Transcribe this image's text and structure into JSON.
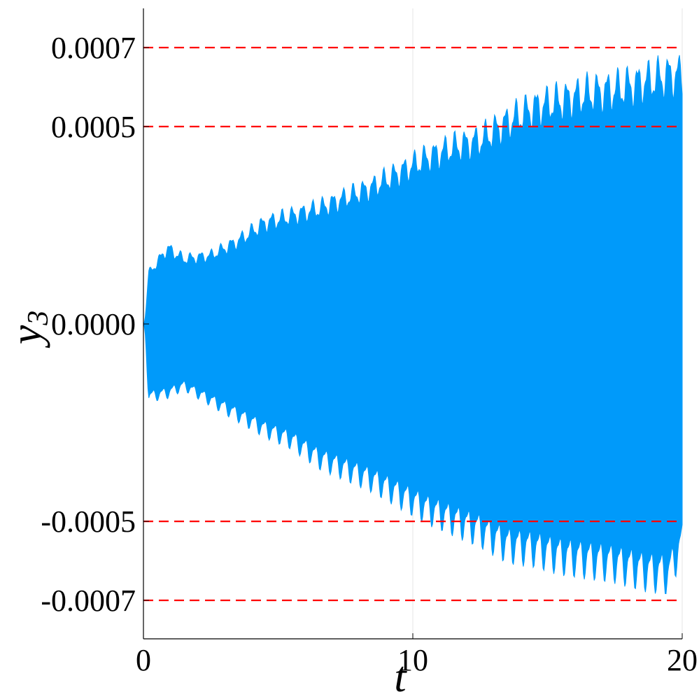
{
  "chart_data": {
    "type": "area",
    "xlabel": "t",
    "ylabel": "y",
    "ylabel_subscript": "3",
    "xlim": [
      0,
      20
    ],
    "ylim": [
      -0.0008,
      0.0008
    ],
    "x_ticks": [
      0,
      10,
      20
    ],
    "x_tick_labels": [
      "0",
      "10",
      "20"
    ],
    "y_ticks": [
      0.0007,
      0.0005,
      0.0,
      -0.0005,
      -0.0007
    ],
    "y_tick_labels": [
      "0.0007",
      "0.0005",
      "0.0000",
      "-0.0005",
      "-0.0007"
    ],
    "grid": "vertical only",
    "legend": "none",
    "series": [
      {
        "style": "rapidly oscillating signal rendered as a filled envelope",
        "color": "#009AFA",
        "x": [
          0,
          0.2,
          0.9,
          1.5,
          2.5,
          3.5,
          4.5,
          5.5,
          6.5,
          7.5,
          8.5,
          9.5,
          10.5,
          11.5,
          12.5,
          13.5,
          14.5,
          15.5,
          16.5,
          17.5,
          18.5,
          19.5,
          20
        ],
        "upper": [
          0.0,
          0.00014,
          0.00021,
          0.00018,
          0.00019,
          0.00023,
          0.00028,
          0.0003,
          0.00032,
          0.00035,
          0.00038,
          0.00042,
          0.00046,
          0.00049,
          0.00051,
          0.00056,
          0.0006,
          0.00062,
          0.00064,
          0.00065,
          0.00067,
          0.00069,
          0.00069
        ],
        "lower": [
          0.0,
          -0.0002,
          -0.00019,
          -0.00017,
          -0.00021,
          -0.00025,
          -0.00029,
          -0.00032,
          -0.00037,
          -0.0004,
          -0.00043,
          -0.00047,
          -0.00051,
          -0.00054,
          -0.00057,
          -0.00061,
          -0.00062,
          -0.00064,
          -0.00065,
          -0.00066,
          -0.00068,
          -0.00069,
          -0.0006
        ]
      }
    ],
    "reference_lines": [
      {
        "y": 0.0007,
        "color": "#FF0000",
        "style": "dashed"
      },
      {
        "y": 0.0005,
        "color": "#FF0000",
        "style": "dashed"
      },
      {
        "y": -0.0005,
        "color": "#FF0000",
        "style": "dashed"
      },
      {
        "y": -0.0007,
        "color": "#FF0000",
        "style": "dashed"
      }
    ]
  }
}
